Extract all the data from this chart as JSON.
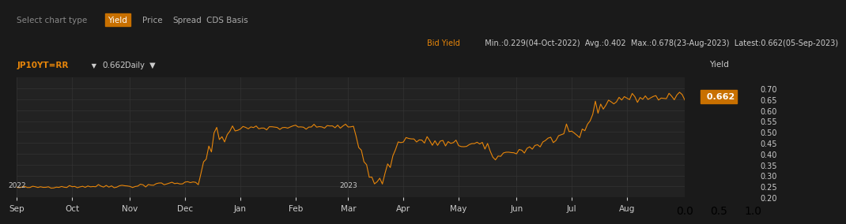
{
  "background_color": "#1a1a1a",
  "plot_bg_color": "#222222",
  "line_color": "#e8860a",
  "grid_color": "#333333",
  "text_color": "#cccccc",
  "title_bar_color": "#2a2a2a",
  "ylim": [
    0.2,
    0.75
  ],
  "yticks": [
    0.2,
    0.25,
    0.3,
    0.35,
    0.4,
    0.45,
    0.5,
    0.55,
    0.6,
    0.65,
    0.7
  ],
  "ylabel": "Yield",
  "xlabel_ticks": [
    "Sep",
    "Oct",
    "Nov",
    "Dec",
    "Jan",
    "Feb",
    "Mar",
    "Apr",
    "May",
    "Jun",
    "Jul",
    "Aug"
  ],
  "xlabel_years": [
    "2022",
    "",
    "",
    "",
    "",
    "",
    "2023",
    "",
    "",
    "",
    "",
    ""
  ],
  "header_text": "Bid Yield  Min.:0.229(04-Oct-2022)  Avg.:0.402  Max.:0.678(23-Aug-2023)  Latest:0.662(05-Sep-2023)",
  "label_text": "JP10YT=RR 0.662",
  "period_text": "Daily",
  "latest_value": "0.662",
  "chart_type_tabs": [
    "Yield",
    "Price",
    "Spread",
    "CDS Basis"
  ],
  "active_tab": "Yield",
  "active_tab_color": "#c87000",
  "select_chart_type_text": "Select chart type"
}
